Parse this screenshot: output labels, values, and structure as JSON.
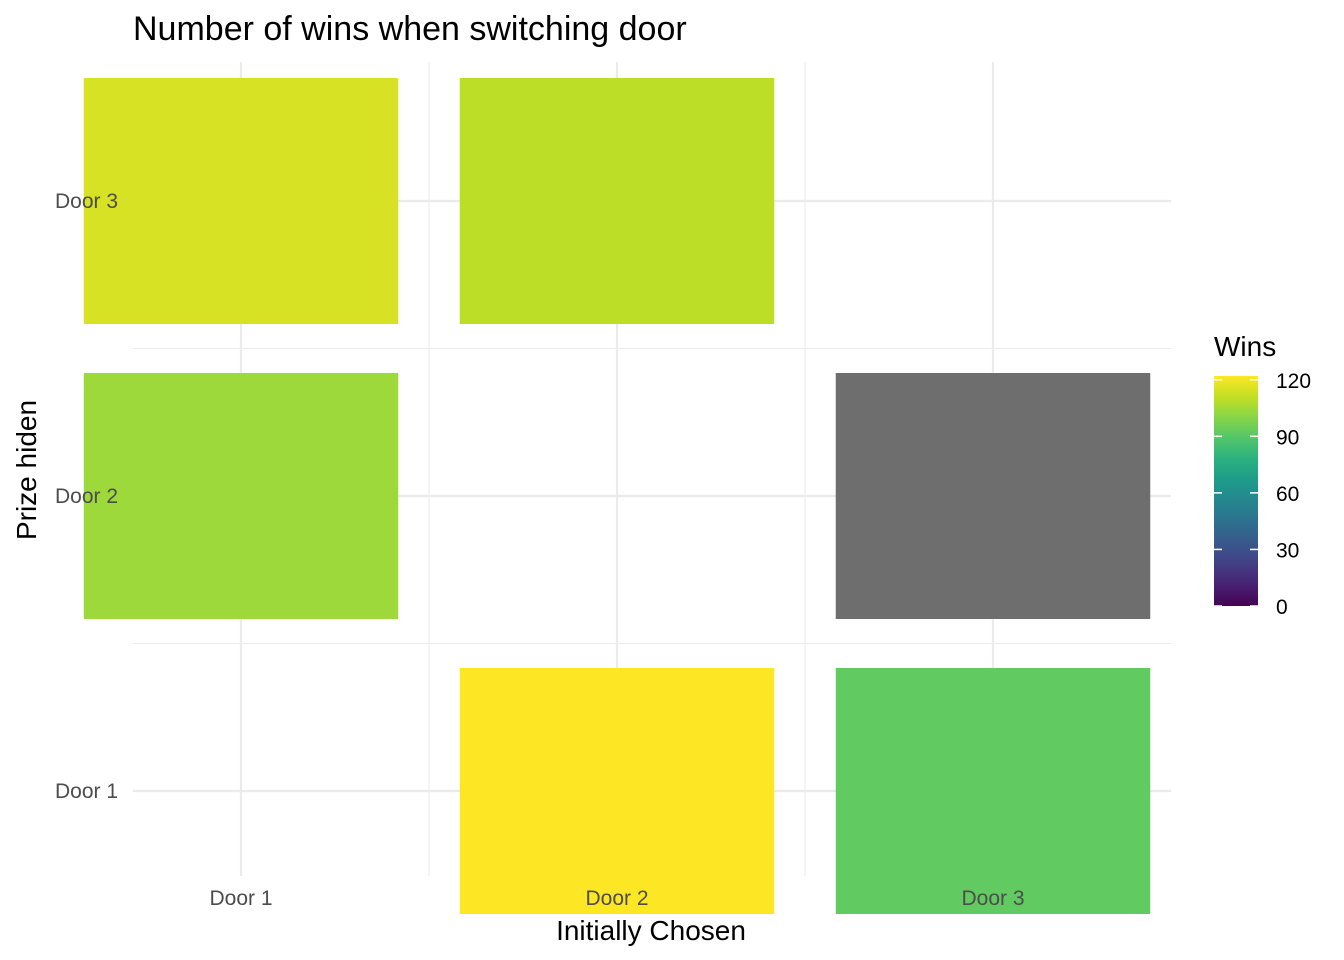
{
  "chart_data": {
    "type": "heatmap",
    "title": "Number of wins when switching door",
    "xlabel": "Initially Chosen",
    "ylabel": "Prize hiden",
    "x_categories": [
      "Door 1",
      "Door 2",
      "Door 3"
    ],
    "y_categories": [
      "Door 1",
      "Door 2",
      "Door 3"
    ],
    "cells": [
      {
        "x": "Door 1",
        "y": "Door 3",
        "value": 115
      },
      {
        "x": "Door 2",
        "y": "Door 3",
        "value": 110
      },
      {
        "x": "Door 1",
        "y": "Door 2",
        "value": 104
      },
      {
        "x": "Door 3",
        "y": "Door 2",
        "value": null
      },
      {
        "x": "Door 2",
        "y": "Door 1",
        "value": 122
      },
      {
        "x": "Door 3",
        "y": "Door 1",
        "value": 92
      }
    ],
    "missing_color": "#6e6e6e",
    "colorscale": "viridis",
    "legend": {
      "title": "Wins",
      "range": [
        0,
        122
      ],
      "ticks": [
        0,
        30,
        60,
        90,
        120
      ],
      "position": "right"
    },
    "grid": true
  }
}
